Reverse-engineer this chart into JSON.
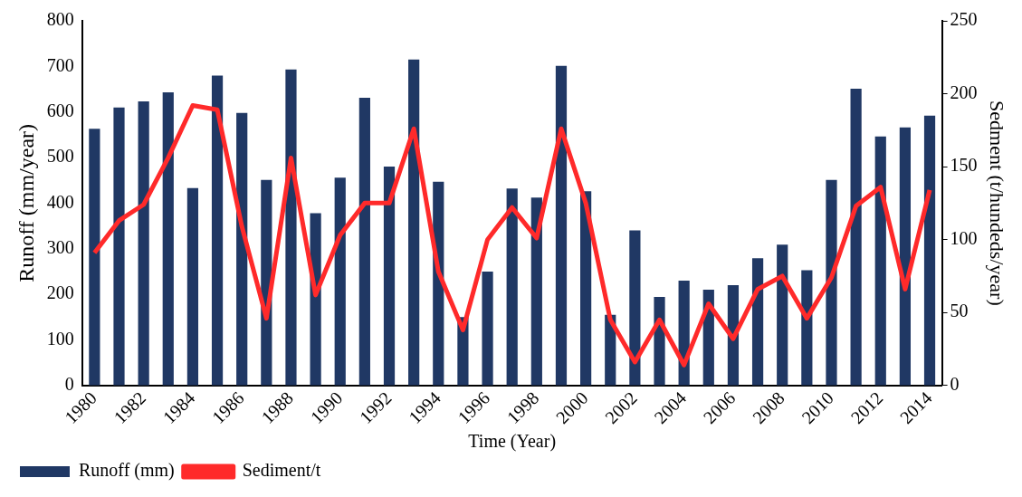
{
  "chart_data": {
    "type": "bar",
    "xlabel": "Time (Year)",
    "ylabel": "Runoff (mm/year)",
    "y2label": "Sedment (t/hundeds/year)",
    "categories": [
      "1980",
      null,
      "1982",
      null,
      "1984",
      null,
      "1986",
      null,
      "1988",
      null,
      "1990",
      null,
      "1992",
      null,
      "1994",
      null,
      "1996",
      null,
      "1998",
      null,
      "2000",
      null,
      "2002",
      null,
      "2004",
      null,
      "2006",
      null,
      "2008",
      null,
      "2010",
      null,
      "2012",
      null,
      "2014"
    ],
    "series": [
      {
        "name": "Runoff (mm)",
        "color": "#203864",
        "values": [
          563,
          610,
          623,
          643,
          433,
          680,
          598,
          451,
          693,
          378,
          456,
          631,
          480,
          715,
          447,
          150,
          250,
          432,
          412,
          701,
          426,
          155,
          340,
          194,
          230,
          210,
          220,
          279,
          309,
          253,
          451,
          651,
          546,
          566,
          592
        ]
      },
      {
        "name": "Sediment/t",
        "type": "line",
        "axis": "y2",
        "color": "#ff2a2a",
        "values": [
          91,
          113,
          124,
          156,
          192,
          189,
          109,
          46,
          156,
          62,
          103,
          125,
          125,
          176,
          78,
          38,
          100,
          122,
          101,
          176,
          125,
          45,
          16,
          45,
          14,
          56,
          32,
          66,
          75,
          46,
          74,
          123,
          136,
          66,
          134
        ]
      }
    ],
    "ylim": [
      0,
      800
    ],
    "yticks": [
      0,
      100,
      200,
      300,
      400,
      500,
      600,
      700,
      800
    ],
    "y2lim": [
      0,
      250
    ],
    "y2ticks": [
      0,
      50,
      100,
      150,
      200,
      250
    ],
    "grid": false,
    "legend": "bottom left",
    "marker": "none",
    "line_style": "solid"
  }
}
